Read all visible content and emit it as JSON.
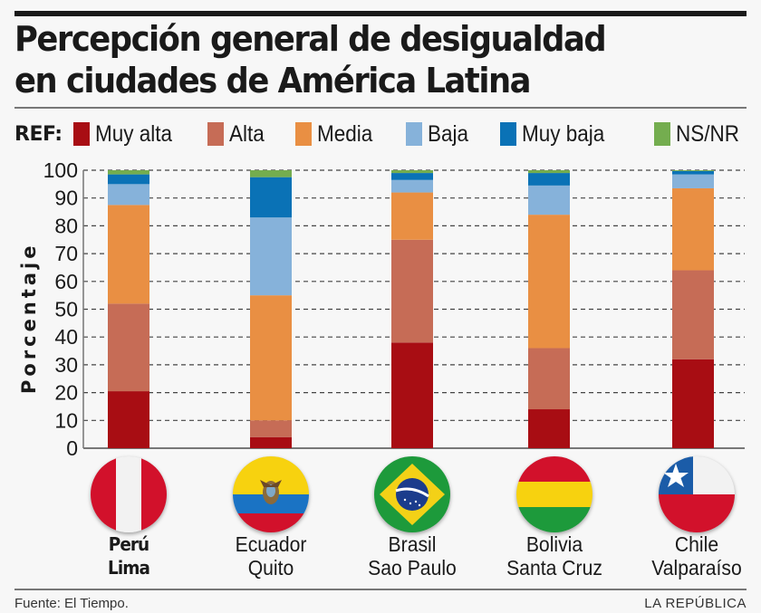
{
  "header": {
    "title_line1": "Percepción general de desigualdad",
    "title_line2": "en ciudades de América Latina"
  },
  "legend": {
    "ref_label": "REF:",
    "items": [
      {
        "label": "Muy alta",
        "color": "#a80d13"
      },
      {
        "label": "Alta",
        "color": "#c66c56"
      },
      {
        "label": "Media",
        "color": "#e98f43"
      },
      {
        "label": "Baja",
        "color": "#86b2da"
      },
      {
        "label": "Muy baja",
        "color": "#0a72b6"
      },
      {
        "label": "NS/NR",
        "color": "#74ad4f"
      }
    ]
  },
  "cities": [
    {
      "country": "Perú",
      "city": "Lima",
      "flag": "peru-flag",
      "bold": true
    },
    {
      "country": "Ecuador",
      "city": "Quito",
      "flag": "ecuador-flag",
      "bold": false
    },
    {
      "country": "Brasil",
      "city": "Sao Paulo",
      "flag": "brazil-flag",
      "bold": false
    },
    {
      "country": "Bolivia",
      "city": "Santa Cruz",
      "flag": "bolivia-flag",
      "bold": false
    },
    {
      "country": "Chile",
      "city": "Valparaíso",
      "flag": "chile-flag",
      "bold": false
    }
  ],
  "footer": {
    "source": "Fuente: El Tiempo.",
    "brand": "LA REPÚBLICA"
  },
  "chart_data": {
    "type": "bar",
    "stacked": true,
    "title": "Percepción general de desigualdad en ciudades de América Latina",
    "xlabel": "",
    "ylabel": "Porcentaje",
    "ylim": [
      0,
      100
    ],
    "yticks": [
      0,
      10,
      20,
      30,
      40,
      50,
      60,
      70,
      80,
      90,
      100
    ],
    "grid": true,
    "legend_position": "top",
    "categories": [
      "Perú Lima",
      "Ecuador Quito",
      "Brasil Sao Paulo",
      "Bolivia Santa Cruz",
      "Chile Valparaíso"
    ],
    "series": [
      {
        "name": "Muy alta",
        "color": "#a80d13",
        "values": [
          20.5,
          4,
          38,
          14,
          32
        ]
      },
      {
        "name": "Alta",
        "color": "#c66c56",
        "values": [
          31.5,
          6,
          37,
          22,
          32
        ]
      },
      {
        "name": "Media",
        "color": "#e98f43",
        "values": [
          35.5,
          45,
          17,
          48,
          29.5
        ]
      },
      {
        "name": "Baja",
        "color": "#86b2da",
        "values": [
          7.5,
          28,
          4.5,
          10.5,
          5
        ]
      },
      {
        "name": "Muy baja",
        "color": "#0a72b6",
        "values": [
          3.5,
          14.5,
          2.5,
          4.5,
          1.2
        ]
      },
      {
        "name": "NS/NR",
        "color": "#74ad4f",
        "values": [
          1.5,
          2.5,
          1,
          1,
          0.3
        ]
      }
    ]
  }
}
